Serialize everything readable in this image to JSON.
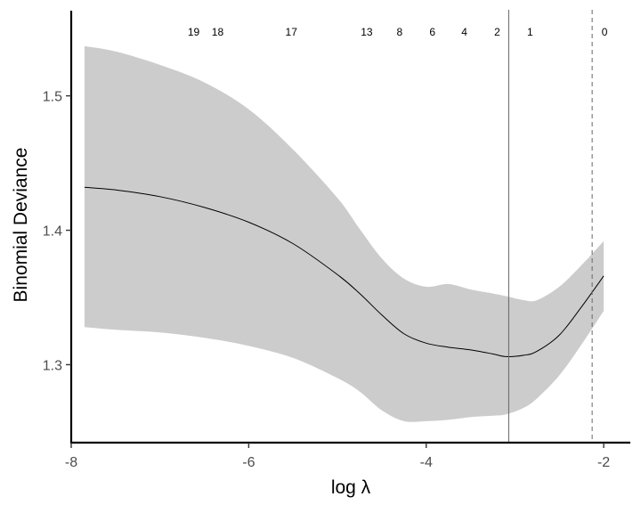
{
  "chart_data": {
    "type": "line",
    "title": "",
    "xlabel": "log λ",
    "ylabel": "Binomial Deviance",
    "xlim": [
      -8.0,
      -1.7
    ],
    "ylim": [
      1.242,
      1.566
    ],
    "x_ticks": [
      -8,
      -6,
      -4,
      -2
    ],
    "x_tick_labels": [
      "-8",
      "-6",
      "-4",
      "-2"
    ],
    "y_ticks": [
      1.3,
      1.4,
      1.5
    ],
    "y_tick_labels": [
      "1.3",
      "1.4",
      "1.5"
    ],
    "grid": false,
    "series": [
      {
        "x": [
          -7.85,
          -7.5,
          -7.0,
          -6.5,
          -6.0,
          -5.5,
          -5.0,
          -4.75,
          -4.5,
          -4.25,
          -4.0,
          -3.75,
          -3.5,
          -3.25,
          -3.1,
          -2.9,
          -2.75,
          -2.5,
          -2.25,
          -2.0
        ],
        "y": [
          1.432,
          1.43,
          1.425,
          1.417,
          1.406,
          1.39,
          1.367,
          1.353,
          1.337,
          1.323,
          1.316,
          1.313,
          1.311,
          1.308,
          1.306,
          1.307,
          1.31,
          1.322,
          1.343,
          1.366
        ],
        "upper": [
          1.537,
          1.533,
          1.523,
          1.51,
          1.49,
          1.46,
          1.424,
          1.401,
          1.379,
          1.364,
          1.358,
          1.36,
          1.356,
          1.353,
          1.351,
          1.348,
          1.348,
          1.358,
          1.374,
          1.392
        ],
        "lower": [
          1.328,
          1.326,
          1.324,
          1.32,
          1.314,
          1.305,
          1.29,
          1.28,
          1.266,
          1.258,
          1.258,
          1.259,
          1.261,
          1.262,
          1.263,
          1.268,
          1.275,
          1.292,
          1.315,
          1.34
        ]
      }
    ],
    "vlines": [
      {
        "x": -3.07,
        "style": "solid"
      },
      {
        "x": -2.13,
        "style": "dashed"
      }
    ],
    "top_labels": [
      {
        "x": -6.62,
        "label": "19"
      },
      {
        "x": -6.35,
        "label": "18"
      },
      {
        "x": -5.52,
        "label": "17"
      },
      {
        "x": -4.67,
        "label": "13"
      },
      {
        "x": -4.3,
        "label": "8"
      },
      {
        "x": -3.93,
        "label": "6"
      },
      {
        "x": -3.57,
        "label": "4"
      },
      {
        "x": -3.2,
        "label": "2"
      },
      {
        "x": -2.83,
        "label": "1"
      },
      {
        "x": -1.99,
        "label": "0"
      }
    ],
    "colors": {
      "band": "#cccccc",
      "line": "#000000",
      "vline": "#666666"
    }
  }
}
